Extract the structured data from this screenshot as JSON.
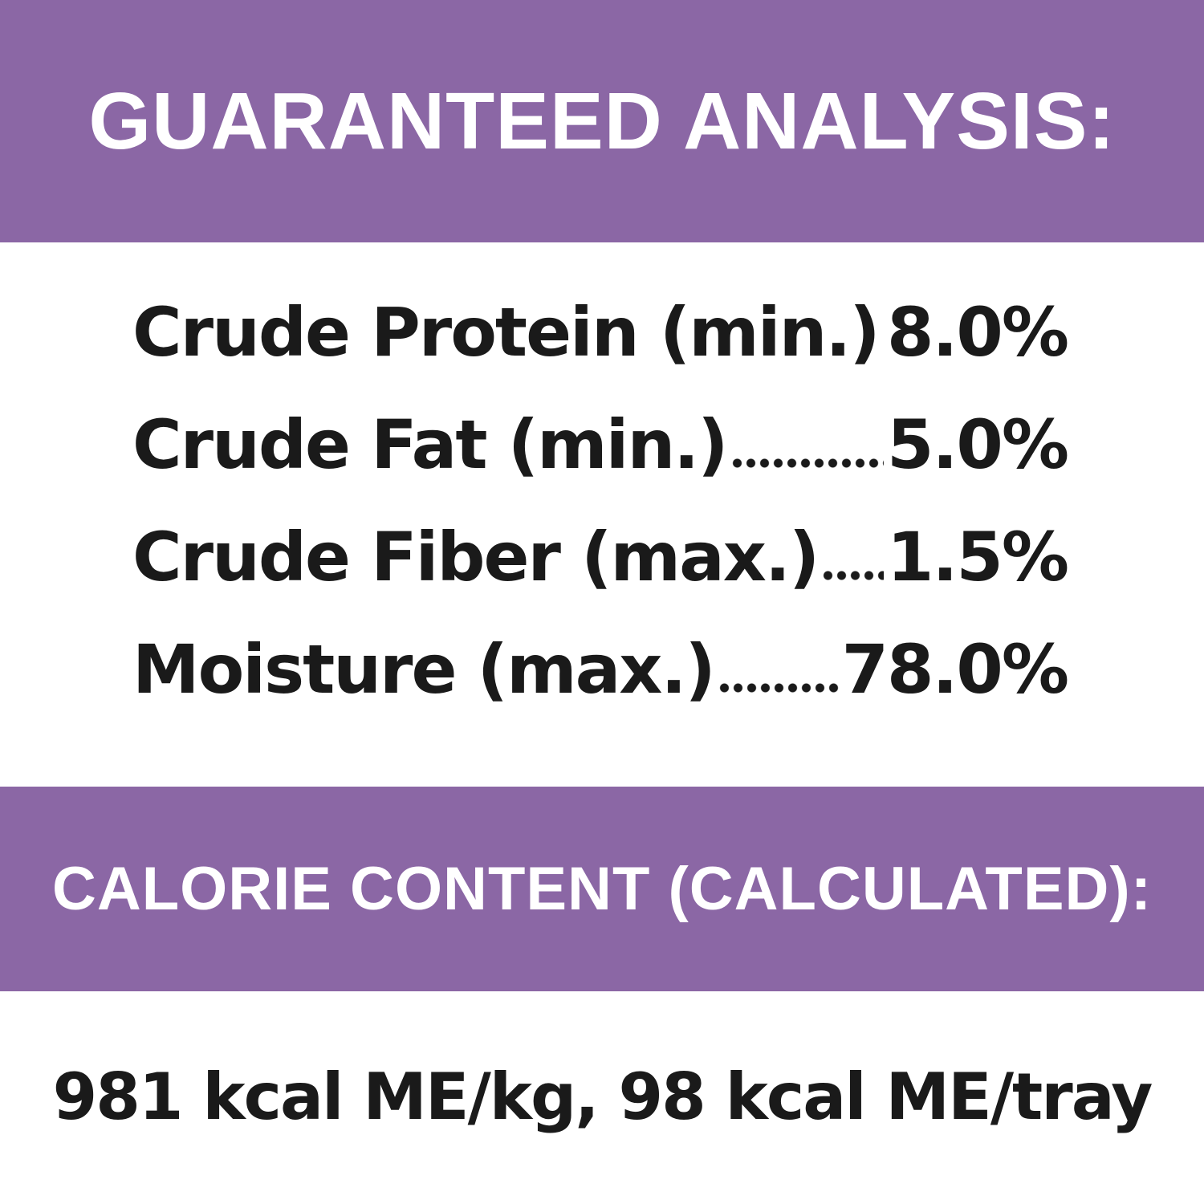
{
  "header": {
    "title": "GUARANTEED ANALYSIS:"
  },
  "table": {
    "rows": [
      [
        "Crude Protein (min.)",
        "8.0%"
      ],
      [
        "Crude Fat (min.)",
        "5.0%"
      ],
      [
        "Crude Fiber (max.)",
        "1.5%"
      ],
      [
        "Moisture (max.)",
        "78.0%"
      ]
    ]
  },
  "calorie": {
    "title": "CALORIE CONTENT (CALCULATED):",
    "text": "981 kcal ME/kg, 98 kcal ME/tray"
  }
}
